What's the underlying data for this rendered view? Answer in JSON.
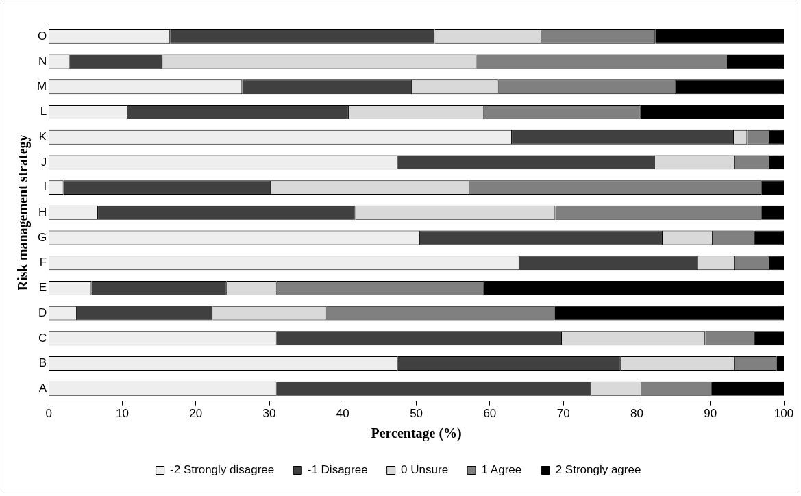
{
  "chart_data": {
    "type": "bar",
    "orientation": "horizontal",
    "stacked": true,
    "xlabel": "Percentage (%)",
    "ylabel": "Risk management strategy",
    "categories": [
      "O",
      "N",
      "M",
      "L",
      "K",
      "J",
      "I",
      "H",
      "G",
      "F",
      "E",
      "D",
      "C",
      "B",
      "A"
    ],
    "xlim": [
      0,
      100
    ],
    "xticks": [
      0,
      10,
      20,
      30,
      40,
      50,
      60,
      70,
      80,
      90,
      100
    ],
    "grid": false,
    "legend": "bottom",
    "series": [
      {
        "name": "-2 Strongly disagree",
        "color": "#eeeeee",
        "values": [
          16.5,
          2.8,
          26.3,
          10.7,
          63,
          47.5,
          2,
          6.7,
          50.5,
          64,
          5.8,
          3.8,
          31,
          47.5,
          31
        ]
      },
      {
        "name": "-1 Disagree",
        "color": "#404040",
        "values": [
          36,
          12.7,
          23.1,
          30.1,
          30.2,
          35,
          28.2,
          35,
          33,
          24.3,
          18.4,
          18.5,
          38.8,
          30.3,
          42.8
        ]
      },
      {
        "name": "0 Unsure",
        "color": "#d9d9d9",
        "values": [
          14.5,
          42.7,
          11.8,
          18.4,
          1.8,
          10.8,
          27,
          27.2,
          6.8,
          5,
          6.8,
          15.5,
          19.5,
          15.5,
          6.8
        ]
      },
      {
        "name": "1 Agree",
        "color": "#808080",
        "values": [
          15.5,
          34,
          24.1,
          21.3,
          3,
          4.7,
          39.8,
          28.1,
          5.7,
          4.7,
          28.2,
          31,
          6.7,
          5.7,
          9.6
        ]
      },
      {
        "name": "2 Strongly agree",
        "color": "#000000",
        "values": [
          17.5,
          7.8,
          14.7,
          19.5,
          2,
          2,
          3,
          3,
          4,
          2,
          40.8,
          31.2,
          4,
          1,
          9.8
        ]
      }
    ]
  }
}
